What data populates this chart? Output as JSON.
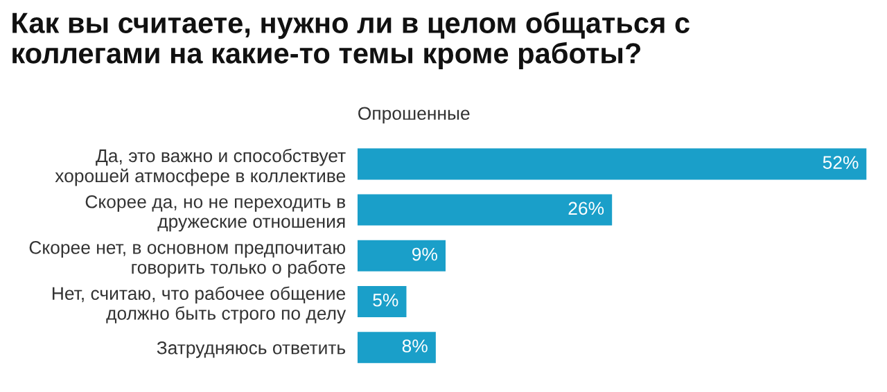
{
  "chart_data": {
    "type": "bar",
    "orientation": "horizontal",
    "title": "Как вы считаете, нужно ли в целом общаться с\nколлегами на какие-то темы кроме работы?",
    "annotations": [
      "Опрошенные"
    ],
    "categories": [
      "Да, это важно и способствует\nхорошей атмосфере в коллективе",
      "Скорее да, но не переходить в\nдружеские отношения",
      "Скорее нет, в основном предпочитаю\nговорить только о работе",
      "Нет, считаю, что рабочее общение\nдолжно быть строго по делу",
      "Затрудняюсь ответить"
    ],
    "values": [
      52,
      26,
      9,
      5,
      8
    ],
    "value_labels": [
      "52%",
      "26%",
      "9%",
      "5%",
      "8%"
    ],
    "color": "#1a9fc9",
    "grid": false,
    "legend": false
  }
}
